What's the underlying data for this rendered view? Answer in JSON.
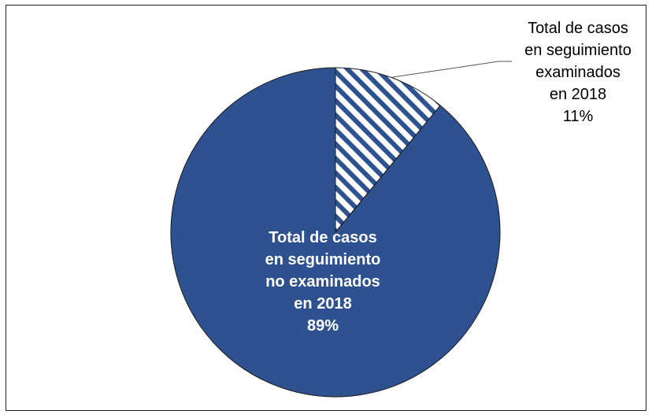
{
  "chart_data": {
    "type": "pie",
    "slices": [
      {
        "label_lines": [
          "Total de casos",
          "en seguimiento",
          "examinados",
          "en 2018",
          "11%"
        ],
        "value": 11,
        "fill": "hatched",
        "colors": {
          "base": "#ffffff",
          "stripe": "#2e5190"
        }
      },
      {
        "label_lines": [
          "Total de casos",
          "en seguimiento",
          "no examinados",
          "en 2018",
          "89%"
        ],
        "value": 89,
        "fill": "solid",
        "colors": {
          "base": "#2e5190"
        }
      }
    ]
  }
}
